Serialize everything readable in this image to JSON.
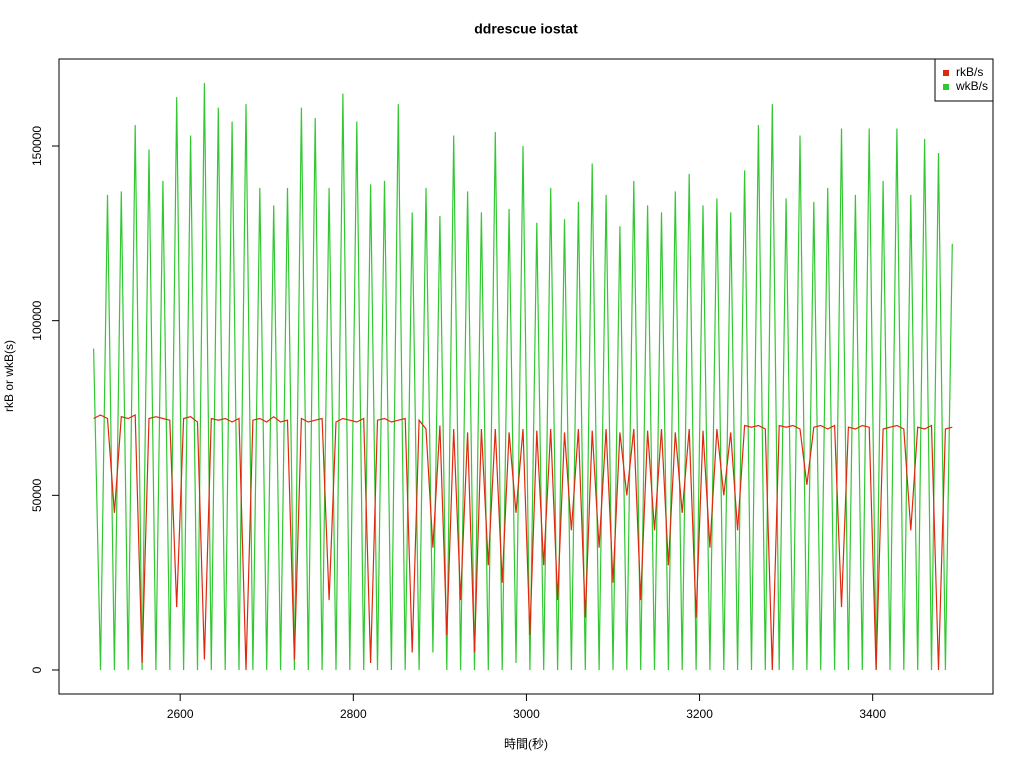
{
  "chart_data": {
    "type": "line",
    "title": "ddrescue iostat",
    "xlabel": "時間(秒)",
    "ylabel": "rkB or wkB(s)",
    "x": [
      2500,
      2508,
      2516,
      2524,
      2532,
      2540,
      2548,
      2556,
      2564,
      2572,
      2580,
      2588,
      2596,
      2604,
      2612,
      2620,
      2628,
      2636,
      2644,
      2652,
      2660,
      2668,
      2676,
      2684,
      2692,
      2700,
      2708,
      2716,
      2724,
      2732,
      2740,
      2748,
      2756,
      2764,
      2772,
      2780,
      2788,
      2796,
      2804,
      2812,
      2820,
      2828,
      2836,
      2844,
      2852,
      2860,
      2868,
      2876,
      2884,
      2892,
      2900,
      2908,
      2916,
      2924,
      2932,
      2940,
      2948,
      2956,
      2964,
      2972,
      2980,
      2988,
      2996,
      3004,
      3012,
      3020,
      3028,
      3036,
      3044,
      3052,
      3060,
      3068,
      3076,
      3084,
      3092,
      3100,
      3108,
      3116,
      3124,
      3132,
      3140,
      3148,
      3156,
      3164,
      3172,
      3180,
      3188,
      3196,
      3204,
      3212,
      3220,
      3228,
      3236,
      3244,
      3252,
      3260,
      3268,
      3276,
      3284,
      3292,
      3300,
      3308,
      3316,
      3324,
      3332,
      3340,
      3348,
      3356,
      3364,
      3372,
      3380,
      3388,
      3396,
      3404,
      3412,
      3420,
      3428,
      3436,
      3444,
      3452,
      3460,
      3468,
      3476,
      3484,
      3492
    ],
    "series": [
      {
        "name": "wkB/s",
        "color": "#32c832",
        "values": [
          92000,
          0,
          136000,
          0,
          137000,
          0,
          156000,
          0,
          149000,
          0,
          140000,
          0,
          164000,
          0,
          153000,
          0,
          168000,
          0,
          161000,
          0,
          157000,
          0,
          162000,
          0,
          138000,
          0,
          133000,
          0,
          138000,
          0,
          161000,
          0,
          158000,
          0,
          138000,
          0,
          165000,
          0,
          157000,
          0,
          139000,
          0,
          140000,
          0,
          162000,
          0,
          131000,
          0,
          138000,
          5000,
          130000,
          0,
          153000,
          0,
          137000,
          0,
          131000,
          0,
          154000,
          0,
          132000,
          2000,
          150000,
          0,
          128000,
          0,
          138000,
          0,
          129000,
          0,
          134000,
          0,
          145000,
          0,
          136000,
          0,
          127000,
          0,
          140000,
          0,
          133000,
          0,
          131000,
          0,
          137000,
          0,
          142000,
          0,
          133000,
          0,
          135000,
          0,
          131000,
          0,
          143000,
          0,
          156000,
          0,
          162000,
          0,
          135000,
          0,
          153000,
          0,
          134000,
          0,
          138000,
          0,
          155000,
          0,
          136000,
          0,
          155000,
          0,
          140000,
          0,
          155000,
          0,
          136000,
          0,
          152000,
          0,
          148000,
          0,
          122000
        ]
      },
      {
        "name": "rkB/s",
        "color": "#e0280e",
        "values": [
          72000,
          73000,
          72000,
          45000,
          72500,
          72000,
          73000,
          2000,
          72000,
          72500,
          72000,
          71500,
          18000,
          72000,
          72500,
          71000,
          3000,
          72000,
          71500,
          72000,
          71000,
          72000,
          0,
          71500,
          72000,
          71000,
          72500,
          71000,
          71500,
          3000,
          72000,
          71000,
          71500,
          72000,
          20000,
          71000,
          72000,
          71500,
          71000,
          72000,
          2000,
          71500,
          72000,
          71000,
          71500,
          72000,
          5000,
          71500,
          69000,
          35000,
          70000,
          10000,
          69000,
          20000,
          68000,
          5000,
          69000,
          30000,
          69000,
          25000,
          68000,
          45000,
          69000,
          10000,
          68500,
          30000,
          69000,
          20000,
          68000,
          40000,
          69000,
          15000,
          68500,
          35000,
          69000,
          25000,
          68000,
          50000,
          69000,
          20000,
          68500,
          40000,
          69000,
          30000,
          68000,
          45000,
          69000,
          15000,
          68500,
          35000,
          69000,
          50000,
          68000,
          40000,
          70000,
          69500,
          70000,
          69000,
          0,
          70000,
          69500,
          70000,
          69000,
          53000,
          69500,
          70000,
          69000,
          70000,
          18000,
          69500,
          69000,
          70000,
          69500,
          0,
          69000,
          69500,
          70000,
          69000,
          40000,
          69500,
          69000,
          70000,
          0,
          69000,
          69500
        ]
      }
    ],
    "xlim": [
      2460,
      3539
    ],
    "ylim": [
      -6870,
      174900
    ],
    "xticks": [
      2600,
      2800,
      3000,
      3200,
      3400
    ],
    "yticks": [
      0,
      50000,
      100000,
      150000
    ],
    "legend": "top-right"
  }
}
